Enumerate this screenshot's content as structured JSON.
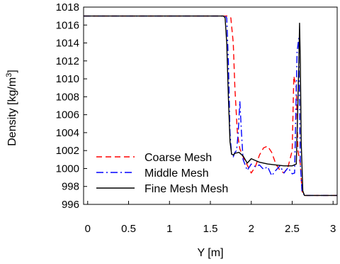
{
  "chart_data": {
    "type": "line",
    "title": "",
    "xlabel": "Y [m]",
    "ylabel_main": "Density [kg/m",
    "ylabel_sup": "3",
    "ylabel_close": "]",
    "xlim": [
      -0.05,
      3.05
    ],
    "ylim": [
      996,
      1018
    ],
    "xticks": [
      0,
      0.5,
      1,
      1.5,
      2,
      2.5,
      3
    ],
    "xtick_labels": [
      "0",
      "0.5",
      "1",
      "1.5",
      "2",
      "2.5",
      "3"
    ],
    "yticks": [
      996,
      998,
      1000,
      1002,
      1004,
      1006,
      1008,
      1010,
      1012,
      1014,
      1016,
      1018
    ],
    "ytick_labels": [
      "996",
      "998",
      "1000",
      "1002",
      "1004",
      "1006",
      "1008",
      "1010",
      "1012",
      "1014",
      "1016",
      "1018"
    ],
    "grid": false,
    "legend_position": "bottom-left",
    "series": [
      {
        "name": "Coarse Mesh",
        "color": "#ff0000",
        "dash": "dashed",
        "x": [
          -0.05,
          1.7,
          1.72,
          1.75,
          1.78,
          1.8,
          1.83,
          1.86,
          1.9,
          1.95,
          2.0,
          2.05,
          2.1,
          2.15,
          2.2,
          2.25,
          2.3,
          2.35,
          2.4,
          2.45,
          2.5,
          2.52,
          2.55,
          2.57,
          2.6,
          2.62,
          2.65,
          3.05
        ],
        "y": [
          1017,
          1017,
          1017,
          1016.8,
          1014,
          1009,
          1004,
          1002.2,
          1001.3,
          1000.4,
          999.5,
          1000.2,
          1001.5,
          1002.3,
          1002.5,
          1001.8,
          1000.5,
          999.8,
          999.5,
          1000.2,
          1002,
          1010.3,
          1009,
          1002,
          1000.5,
          997.5,
          997,
          997
        ]
      },
      {
        "name": "Middle Mesh",
        "color": "#0000ff",
        "dash": "dashdot",
        "x": [
          -0.05,
          1.68,
          1.7,
          1.72,
          1.74,
          1.76,
          1.78,
          1.8,
          1.82,
          1.84,
          1.86,
          1.88,
          1.9,
          1.95,
          2.0,
          2.05,
          2.1,
          2.15,
          2.2,
          2.25,
          2.3,
          2.35,
          2.4,
          2.45,
          2.5,
          2.53,
          2.56,
          2.58,
          2.6,
          2.62,
          2.65,
          3.05
        ],
        "y": [
          1017,
          1017,
          1016.8,
          1012,
          1004,
          1001.5,
          1001.3,
          1001.8,
          1002,
          1004,
          1007.5,
          1004,
          1001,
          999.8,
          1000.5,
          1000.2,
          1000.4,
          999.9,
          1000.2,
          999.2,
          999.8,
          1000.3,
          999.5,
          1000.1,
          999.4,
          999.5,
          1013,
          1014.5,
          1000.5,
          997.5,
          997,
          997
        ]
      },
      {
        "name": "Fine Mesh Mesh",
        "color": "#000000",
        "dash": "solid",
        "x": [
          -0.05,
          1.66,
          1.68,
          1.7,
          1.72,
          1.74,
          1.76,
          1.78,
          1.8,
          1.85,
          1.9,
          1.95,
          2.0,
          2.05,
          2.1,
          2.2,
          2.3,
          2.4,
          2.5,
          2.55,
          2.58,
          2.59,
          2.6,
          2.61,
          2.63,
          2.65,
          3.05
        ],
        "y": [
          1017,
          1017,
          1016.8,
          1014,
          1008,
          1003,
          1001.6,
          1001.5,
          1001.7,
          1001.8,
          1001.4,
          1000.6,
          1001.1,
          1000.9,
          1000.7,
          1000.5,
          1000.4,
          1000.3,
          1000.3,
          1000.5,
          1011,
          1016.2,
          1012,
          1003,
          997.5,
          997,
          997
        ]
      }
    ]
  }
}
